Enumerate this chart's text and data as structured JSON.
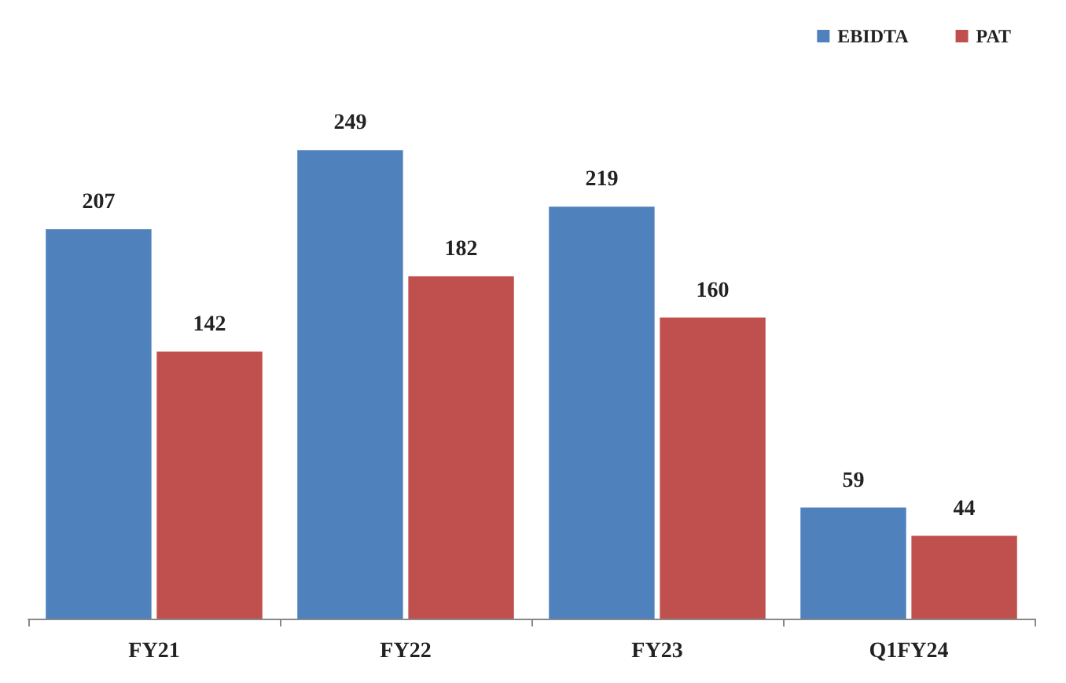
{
  "chart_data": {
    "type": "bar",
    "categories": [
      "FY21",
      "FY22",
      "FY23",
      "Q1FY24"
    ],
    "series": [
      {
        "name": "EBIDTA",
        "color": "#4f81bd",
        "values": [
          207,
          249,
          219,
          59
        ]
      },
      {
        "name": "PAT",
        "color": "#c0504d",
        "values": [
          142,
          182,
          160,
          44
        ]
      }
    ],
    "data_labels": true,
    "legend": "top right",
    "grid": false
  }
}
